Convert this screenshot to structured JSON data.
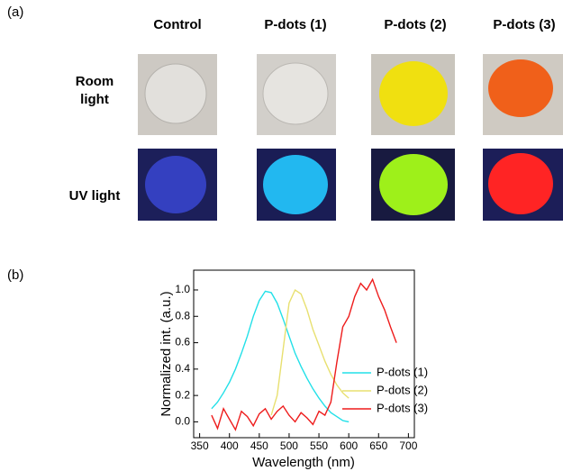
{
  "panel_a": {
    "label": "(a)",
    "columns": [
      "Control",
      "P-dots (1)",
      "P-dots (2)",
      "P-dots (3)"
    ],
    "rows": [
      "Room light",
      "UV light"
    ]
  },
  "panel_b": {
    "label": "(b)"
  },
  "chart_data": {
    "type": "line",
    "x_label": "Wavelength (nm)",
    "y_label": "Normalized int. (a.u.)",
    "x": [
      360,
      370,
      380,
      390,
      400,
      410,
      420,
      430,
      440,
      450,
      460,
      470,
      480,
      490,
      500,
      510,
      520,
      530,
      540,
      550,
      560,
      570,
      580,
      590,
      600,
      610,
      620,
      630,
      640,
      650,
      660,
      670,
      680
    ],
    "series": [
      {
        "name": "P-dots (1)",
        "color": "#22e0e8",
        "values": [
          null,
          0.1,
          0.15,
          0.22,
          0.3,
          0.4,
          0.52,
          0.65,
          0.8,
          0.92,
          0.99,
          0.98,
          0.9,
          0.78,
          0.65,
          0.52,
          0.42,
          0.33,
          0.25,
          0.18,
          0.12,
          0.07,
          0.04,
          0.01,
          0.0,
          null,
          null,
          null,
          null,
          null,
          null,
          null,
          null
        ]
      },
      {
        "name": "P-dots (2)",
        "color": "#e8e070",
        "values": [
          null,
          null,
          null,
          null,
          null,
          null,
          null,
          null,
          null,
          null,
          null,
          0.05,
          0.2,
          0.55,
          0.9,
          1.0,
          0.97,
          0.85,
          0.7,
          0.58,
          0.46,
          0.36,
          0.28,
          0.22,
          0.18,
          null,
          null,
          null,
          null,
          null,
          null,
          null,
          null
        ]
      },
      {
        "name": "P-dots (3)",
        "color": "#ee1c1c",
        "values": [
          null,
          0.05,
          -0.05,
          0.1,
          0.02,
          -0.06,
          0.08,
          0.04,
          -0.03,
          0.06,
          0.1,
          0.02,
          0.08,
          0.12,
          0.05,
          0.0,
          0.07,
          0.03,
          -0.02,
          0.08,
          0.05,
          0.15,
          0.45,
          0.72,
          0.8,
          0.95,
          1.05,
          1.0,
          1.08,
          0.95,
          0.85,
          0.72,
          0.6
        ]
      }
    ],
    "xlim": [
      340,
      710
    ],
    "ylim": [
      -0.12,
      1.15
    ],
    "xticks": [
      350,
      400,
      450,
      500,
      550,
      600,
      650,
      700
    ],
    "yticks": [
      {
        "value": 0,
        "label": "0.0"
      },
      {
        "value": 0.2,
        "label": "0.2"
      },
      {
        "value": 0.4,
        "label": "0.4"
      },
      {
        "value": 0.6,
        "label": "0.6"
      },
      {
        "value": 0.8,
        "label": "0.8"
      },
      {
        "value": 1,
        "label": "1.0"
      }
    ],
    "legend": "lower right"
  }
}
